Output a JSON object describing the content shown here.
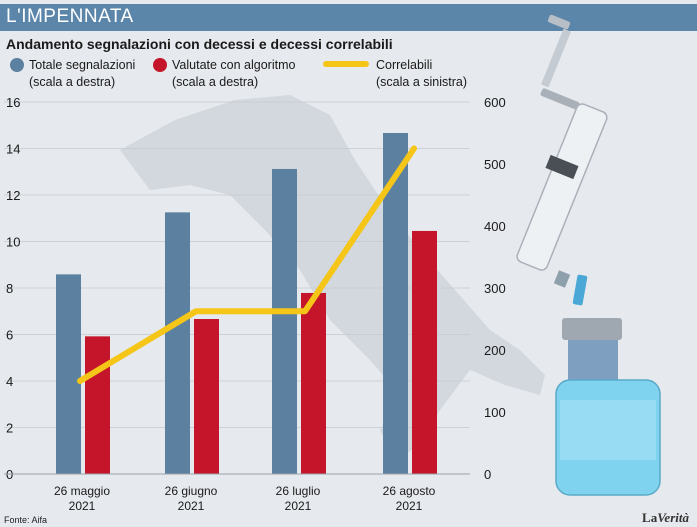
{
  "banner": "L'IMPENNATA",
  "subtitle": "Andamento segnalazioni con decessi e decessi correlabili",
  "source": "Fonte: Aifa",
  "logo": {
    "part1": "La",
    "part2": "Verità"
  },
  "colors": {
    "blue": "#5b80a0",
    "red": "#c4152a",
    "yellow": "#f5c518",
    "banner": "#5b86aa"
  },
  "chart_data": {
    "type": "bar",
    "categories": [
      {
        "line1": "26 maggio",
        "line2": "2021"
      },
      {
        "line1": "26 giugno",
        "line2": "2021"
      },
      {
        "line1": "26 luglio",
        "line2": "2021"
      },
      {
        "line1": "26 agosto",
        "line2": "2021"
      }
    ],
    "series": [
      {
        "name": "Totale segnalazioni",
        "name2": "(scala a destra)",
        "kind": "bar",
        "axis": "right",
        "color": "#5b80a0",
        "values": [
          322,
          422,
          492,
          550
        ]
      },
      {
        "name": "Valutate con algoritmo",
        "name2": "(scala a destra)",
        "kind": "bar",
        "axis": "right",
        "color": "#c4152a",
        "values": [
          222,
          250,
          292,
          392
        ]
      },
      {
        "name": "Correlabili",
        "name2": "(scala a sinistra)",
        "kind": "line",
        "axis": "left",
        "color": "#f5c518",
        "values": [
          4,
          7,
          7,
          14
        ]
      }
    ],
    "left_axis": {
      "min": 0,
      "max": 16,
      "ticks": [
        "0",
        "2",
        "4",
        "6",
        "8",
        "10",
        "12",
        "14",
        "16"
      ]
    },
    "right_axis": {
      "min": 0,
      "max": 600,
      "ticks": [
        "0",
        "100",
        "200",
        "300",
        "400",
        "500",
        "600"
      ]
    }
  }
}
